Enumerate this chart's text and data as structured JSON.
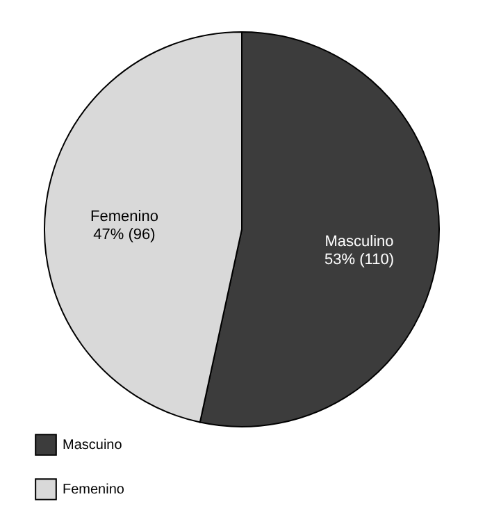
{
  "chart_data": {
    "type": "pie",
    "categories": [
      "Mascuino",
      "Femenino"
    ],
    "values": [
      110,
      96
    ],
    "colors": [
      "#3c3c3c",
      "#d9d9d9"
    ],
    "value_labels": [
      "Masculino\n53% (110)",
      "Femenino\n47% (96)"
    ],
    "legend": "bottom left"
  }
}
